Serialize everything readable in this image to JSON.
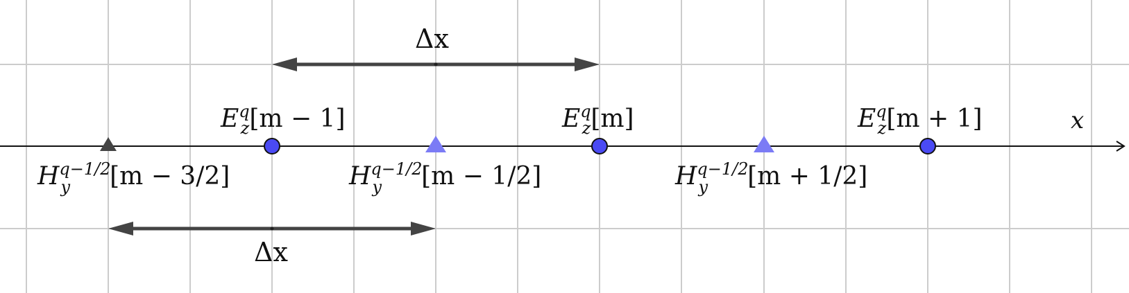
{
  "axis": {
    "label": "x"
  },
  "delta_top": {
    "label": "Δx"
  },
  "delta_bottom": {
    "label": "Δx"
  },
  "e_nodes": [
    {
      "label_main": "E",
      "sup": "q",
      "sub": "z",
      "index": "[m − 1]"
    },
    {
      "label_main": "E",
      "sup": "q",
      "sub": "z",
      "index": "[m]"
    },
    {
      "label_main": "E",
      "sup": "q",
      "sub": "z",
      "index": "[m + 1]"
    }
  ],
  "h_nodes": [
    {
      "label_main": "H",
      "sup": "q−1/2",
      "sub": "y",
      "index": "[m − 3/2]",
      "style": "dark"
    },
    {
      "label_main": "H",
      "sup": "q−1/2",
      "sub": "y",
      "index": "[m − 1/2]",
      "style": "blue"
    },
    {
      "label_main": "H",
      "sup": "q−1/2",
      "sub": "y",
      "index": "[m + 1/2]",
      "style": "blue"
    }
  ],
  "colors": {
    "grid": "#cccccc",
    "axis": "#111111",
    "e_node_fill": "#4a4af4",
    "h_node_fill": "#7b7bf5",
    "h_node_dark": "#444444",
    "arrow": "#444444"
  }
}
